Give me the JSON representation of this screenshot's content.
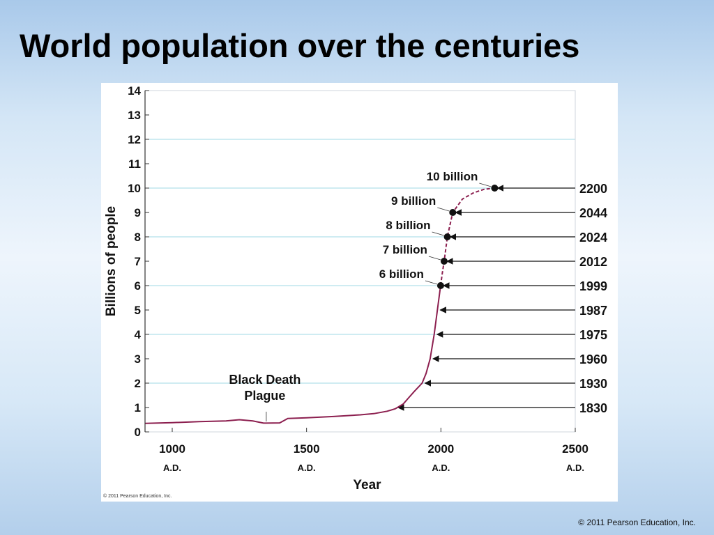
{
  "slide": {
    "title": "World population over the centuries",
    "footer": "© 2011 Pearson Education, Inc."
  },
  "figure": {
    "credit": "© 2011 Pearson Education, Inc."
  },
  "colors": {
    "curve": "#8c1f4f",
    "gridline": "#9fd8e6",
    "text": "#111111"
  },
  "chart_data": {
    "type": "line",
    "title": "",
    "xlabel": "Year",
    "ylabel": "Billions of people",
    "xlim": [
      900,
      2500
    ],
    "ylim": [
      0,
      14
    ],
    "grid": "horizontal gridlines at 2, 4, 6, 8, 10, 12",
    "x_ticks": [
      {
        "value": 1000,
        "label": "1000",
        "era": "A.D."
      },
      {
        "value": 1500,
        "label": "1500",
        "era": "A.D."
      },
      {
        "value": 2000,
        "label": "2000",
        "era": "A.D."
      },
      {
        "value": 2500,
        "label": "2500",
        "era": "A.D."
      }
    ],
    "y_ticks": [
      0,
      1,
      2,
      3,
      4,
      5,
      6,
      7,
      8,
      9,
      10,
      11,
      12,
      13,
      14
    ],
    "series": [
      {
        "style": "solid",
        "points": [
          [
            900,
            0.35
          ],
          [
            1000,
            0.38
          ],
          [
            1100,
            0.42
          ],
          [
            1200,
            0.45
          ],
          [
            1250,
            0.5
          ],
          [
            1300,
            0.45
          ],
          [
            1340,
            0.36
          ],
          [
            1400,
            0.37
          ],
          [
            1430,
            0.55
          ],
          [
            1500,
            0.58
          ],
          [
            1600,
            0.63
          ],
          [
            1700,
            0.7
          ],
          [
            1750,
            0.75
          ],
          [
            1800,
            0.85
          ],
          [
            1830,
            0.95
          ],
          [
            1860,
            1.15
          ],
          [
            1880,
            1.4
          ],
          [
            1900,
            1.65
          ],
          [
            1930,
            2.0
          ],
          [
            1945,
            2.4
          ],
          [
            1960,
            3.0
          ],
          [
            1975,
            4.0
          ],
          [
            1987,
            5.0
          ],
          [
            1999,
            6.0
          ]
        ]
      },
      {
        "style": "dashed",
        "points": [
          [
            1999,
            6.0
          ],
          [
            2005,
            6.5
          ],
          [
            2012,
            7.0
          ],
          [
            2024,
            8.0
          ],
          [
            2044,
            9.0
          ],
          [
            2080,
            9.55
          ],
          [
            2120,
            9.8
          ],
          [
            2160,
            9.95
          ],
          [
            2200,
            10.0
          ]
        ]
      }
    ],
    "milestones": [
      {
        "year": 1999,
        "billions": 6,
        "label": "6 billion"
      },
      {
        "year": 2012,
        "billions": 7,
        "label": "7 billion"
      },
      {
        "year": 2024,
        "billions": 8,
        "label": "8 billion"
      },
      {
        "year": 2044,
        "billions": 9,
        "label": "9 billion"
      },
      {
        "year": 2200,
        "billions": 10,
        "label": "10 billion"
      }
    ],
    "year_markers": [
      {
        "label": "2200",
        "year": 2200,
        "billions": 10
      },
      {
        "label": "2044",
        "year": 2044,
        "billions": 9
      },
      {
        "label": "2024",
        "year": 2024,
        "billions": 8
      },
      {
        "label": "2012",
        "year": 2012,
        "billions": 7
      },
      {
        "label": "1999",
        "year": 1999,
        "billions": 6
      },
      {
        "label": "1987",
        "year": 1987,
        "billions": 5
      },
      {
        "label": "1975",
        "year": 1975,
        "billions": 4
      },
      {
        "label": "1960",
        "year": 1960,
        "billions": 3
      },
      {
        "label": "1930",
        "year": 1930,
        "billions": 2
      },
      {
        "label": "1830",
        "year": 1830,
        "billions": 1
      }
    ],
    "annotations": [
      {
        "lines": [
          "Black Death",
          "Plague"
        ],
        "year": 1350
      }
    ]
  }
}
